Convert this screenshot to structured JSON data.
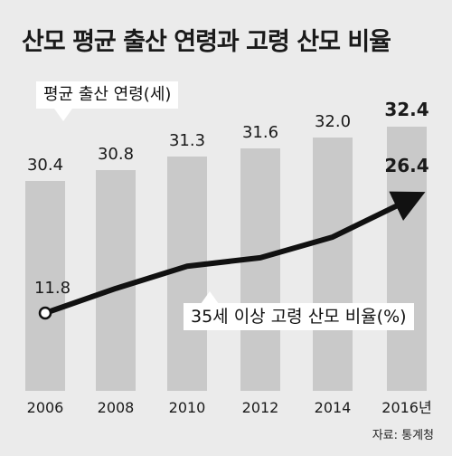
{
  "title": "산모 평균 출산 연령과 고령 산모 비율",
  "source": "자료: 통계청",
  "colors": {
    "background": "#ebebeb",
    "bar": "#c9c9c9",
    "line": "#111111",
    "text": "#1a1a1a"
  },
  "chart_data": {
    "type": "bar+line",
    "categories": [
      "2006",
      "2008",
      "2010",
      "2012",
      "2014",
      "2016년"
    ],
    "series": [
      {
        "name": "평균 출산 연령(세)",
        "type": "bar",
        "values": [
          30.4,
          30.8,
          31.3,
          31.6,
          32.0,
          32.4
        ],
        "labels": [
          "30.4",
          "30.8",
          "31.3",
          "31.6",
          "32.0",
          "32.4"
        ]
      },
      {
        "name": "35세 이상 고령 산모 비율(%)",
        "type": "line",
        "values": [
          11.8,
          15.0,
          17.9,
          19.0,
          21.7,
          26.4
        ],
        "labels": [
          "11.8",
          "",
          "",
          "",
          "",
          "26.4"
        ]
      }
    ],
    "grid": false,
    "legend": "inline callouts"
  }
}
